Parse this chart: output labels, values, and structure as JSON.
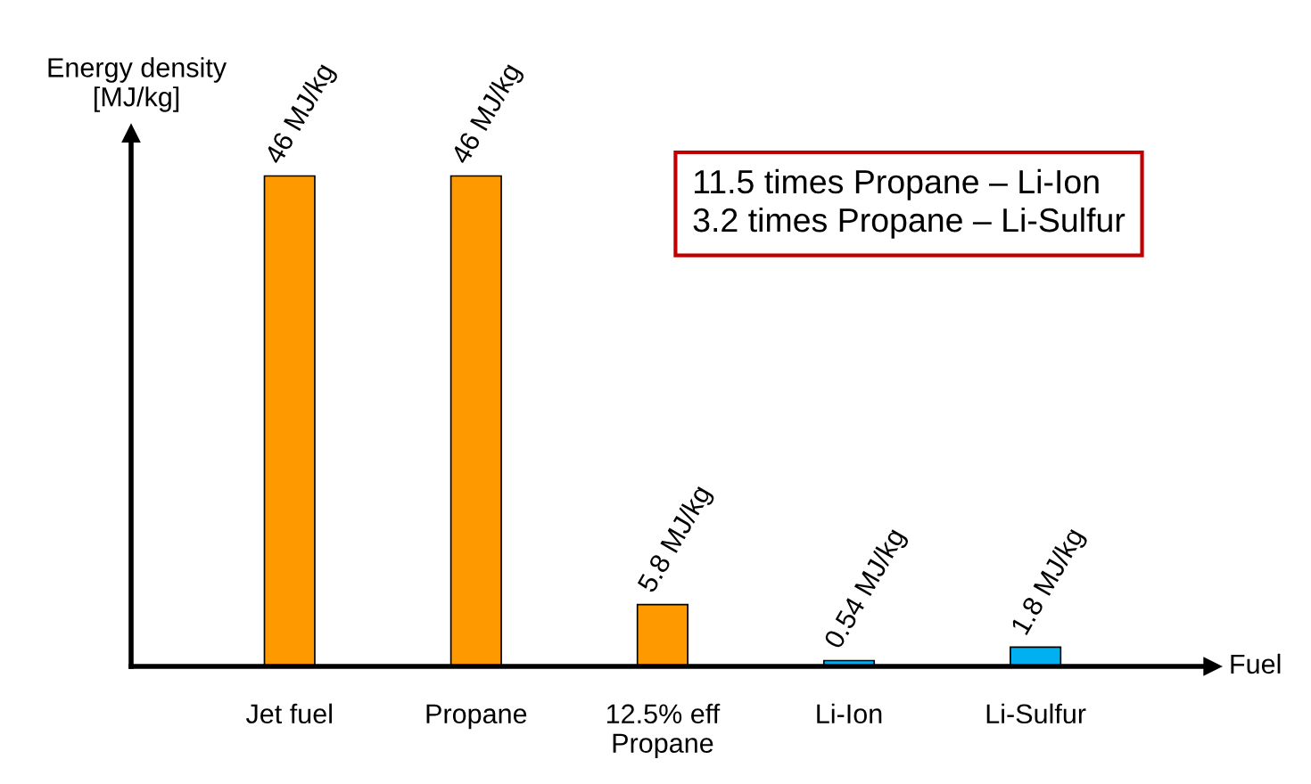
{
  "chart_data": {
    "type": "bar",
    "xlabel": "Fuel",
    "ylabel": "Energy density\n[MJ/kg]",
    "categories": [
      "Jet fuel",
      "Propane",
      "12.5% eff\nPropane",
      "Li-Ion",
      "Li-Sulfur"
    ],
    "values": [
      46,
      46,
      5.8,
      0.54,
      1.8
    ],
    "colors": [
      "#ff9900",
      "#ff9900",
      "#ff9900",
      "#00b0f0",
      "#00b0f0"
    ],
    "value_labels": [
      "46 MJ/kg",
      "46 MJ/kg",
      "5.8 MJ/kg",
      "0.54 MJ/kg",
      "1.8 MJ/kg"
    ],
    "annotations": [
      "11.5 times Propane – Li-Ion\n3.2 times Propane – Li-Sulfur"
    ],
    "ylim": [
      0,
      50
    ],
    "tick_labels": "x",
    "grid": false,
    "legend": false
  }
}
